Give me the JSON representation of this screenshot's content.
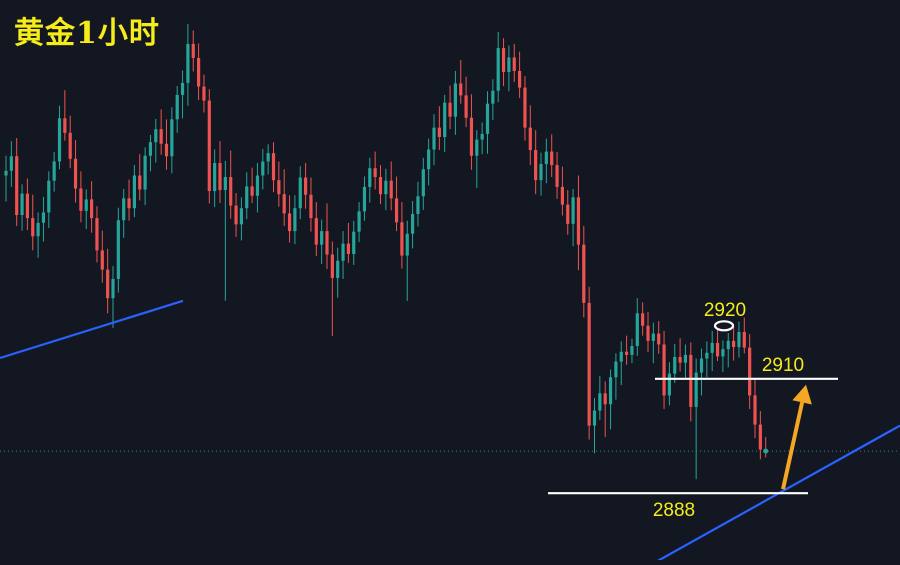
{
  "chart_data": {
    "type": "candlestick",
    "title": "黄金1小时",
    "y_range": [
      2879,
      2979
    ],
    "current_price": 2896.1,
    "annotations": {
      "peak_label": "2920",
      "resistance_label": "2910",
      "support_label": "2888"
    },
    "levels": {
      "peak": 2920,
      "resistance": 2910,
      "support": 2888
    },
    "colors": {
      "background": "#131722",
      "up": "#26a69a",
      "down": "#ef5350",
      "trendline": "#2962ff",
      "level_line": "#ffffff",
      "arrow": "#f5a623",
      "label": "#f5ec1a",
      "title": "#f5ec1a"
    },
    "candles": [
      [
        2949.1,
        2952.9,
        2944.1,
        2950.0
      ],
      [
        2950.0,
        2955.7,
        2946.9,
        2952.8
      ],
      [
        2952.8,
        2956.3,
        2939.4,
        2941.5
      ],
      [
        2941.5,
        2947.4,
        2938.5,
        2945.6
      ],
      [
        2945.6,
        2948.5,
        2938.6,
        2940.9
      ],
      [
        2940.9,
        2945.4,
        2934.7,
        2937.4
      ],
      [
        2937.4,
        2942.0,
        2933.3,
        2940.0
      ],
      [
        2940.0,
        2945.0,
        2936.4,
        2942.0
      ],
      [
        2942.0,
        2949.9,
        2939.0,
        2948.1
      ],
      [
        2948.1,
        2953.6,
        2946.0,
        2951.8
      ],
      [
        2951.8,
        2962.5,
        2950.3,
        2960.1
      ],
      [
        2960.1,
        2965.5,
        2955.8,
        2957.3
      ],
      [
        2957.3,
        2960.6,
        2950.5,
        2952.3
      ],
      [
        2952.3,
        2955.9,
        2943.9,
        2946.6
      ],
      [
        2946.6,
        2949.9,
        2940.1,
        2942.3
      ],
      [
        2942.3,
        2946.4,
        2938.8,
        2944.5
      ],
      [
        2944.5,
        2948.0,
        2938.1,
        2940.9
      ],
      [
        2940.9,
        2943.2,
        2932.4,
        2934.7
      ],
      [
        2934.7,
        2938.5,
        2928.5,
        2931.0
      ],
      [
        2931.0,
        2935.0,
        2922.6,
        2925.5
      ],
      [
        2925.5,
        2931.7,
        2919.8,
        2929.2
      ],
      [
        2929.2,
        2942.9,
        2926.6,
        2940.5
      ],
      [
        2940.5,
        2946.5,
        2937.1,
        2944.7
      ],
      [
        2944.7,
        2948.3,
        2940.4,
        2942.8
      ],
      [
        2942.8,
        2951.1,
        2941.1,
        2949.1
      ],
      [
        2949.1,
        2953.2,
        2944.3,
        2946.4
      ],
      [
        2946.4,
        2954.5,
        2943.4,
        2952.9
      ],
      [
        2952.9,
        2956.9,
        2949.9,
        2955.5
      ],
      [
        2955.5,
        2960.0,
        2951.6,
        2958.0
      ],
      [
        2958.0,
        2961.8,
        2953.1,
        2955.2
      ],
      [
        2955.2,
        2959.9,
        2950.2,
        2952.8
      ],
      [
        2952.8,
        2962.2,
        2949.5,
        2959.9
      ],
      [
        2959.9,
        2966.3,
        2957.3,
        2964.6
      ],
      [
        2964.6,
        2969.3,
        2960.1,
        2966.9
      ],
      [
        2966.9,
        2978.2,
        2962.5,
        2974.4
      ],
      [
        2974.4,
        2977.0,
        2969.1,
        2971.7
      ],
      [
        2971.7,
        2974.5,
        2963.6,
        2966.2
      ],
      [
        2966.2,
        2968.5,
        2961.2,
        2963.5
      ],
      [
        2963.5,
        2965.7,
        2943.7,
        2946.1
      ],
      [
        2946.1,
        2954.1,
        2943.0,
        2951.5
      ],
      [
        2951.5,
        2955.7,
        2943.8,
        2946.3
      ],
      [
        2946.3,
        2951.9,
        2925.0,
        2948.8
      ],
      [
        2948.8,
        2953.9,
        2940.8,
        2943.3
      ],
      [
        2943.3,
        2945.7,
        2937.3,
        2939.7
      ],
      [
        2939.7,
        2944.9,
        2936.6,
        2942.8
      ],
      [
        2942.8,
        2949.7,
        2940.7,
        2947.0
      ],
      [
        2947.0,
        2950.6,
        2943.8,
        2945.2
      ],
      [
        2945.2,
        2951.5,
        2942.0,
        2949.1
      ],
      [
        2949.1,
        2954.2,
        2946.4,
        2951.8
      ],
      [
        2951.8,
        2955.1,
        2949.3,
        2953.4
      ],
      [
        2953.4,
        2955.5,
        2945.9,
        2948.2
      ],
      [
        2948.2,
        2951.8,
        2943.1,
        2945.5
      ],
      [
        2945.5,
        2950.3,
        2939.4,
        2941.8
      ],
      [
        2941.8,
        2945.3,
        2936.2,
        2938.4
      ],
      [
        2938.4,
        2945.3,
        2935.9,
        2942.8
      ],
      [
        2942.8,
        2950.9,
        2940.7,
        2948.7
      ],
      [
        2948.7,
        2951.5,
        2942.7,
        2945.4
      ],
      [
        2945.4,
        2948.7,
        2938.3,
        2940.9
      ],
      [
        2940.9,
        2944.0,
        2933.6,
        2935.8
      ],
      [
        2935.8,
        2940.6,
        2932.1,
        2938.4
      ],
      [
        2938.4,
        2943.7,
        2931.1,
        2933.9
      ],
      [
        2933.9,
        2936.4,
        2918.2,
        2929.4
      ],
      [
        2929.4,
        2935.2,
        2925.6,
        2932.7
      ],
      [
        2932.7,
        2938.4,
        2929.2,
        2936.0
      ],
      [
        2936.0,
        2940.0,
        2932.3,
        2934.0
      ],
      [
        2934.0,
        2940.4,
        2931.9,
        2938.3
      ],
      [
        2938.3,
        2944.0,
        2936.3,
        2942.2
      ],
      [
        2942.2,
        2948.9,
        2940.4,
        2946.9
      ],
      [
        2946.9,
        2952.5,
        2943.9,
        2950.5
      ],
      [
        2950.5,
        2953.7,
        2946.4,
        2948.8
      ],
      [
        2948.8,
        2951.1,
        2943.6,
        2945.5
      ],
      [
        2945.5,
        2950.4,
        2942.4,
        2948.1
      ],
      [
        2948.1,
        2951.8,
        2942.4,
        2944.7
      ],
      [
        2944.7,
        2948.9,
        2938.4,
        2940.1
      ],
      [
        2940.1,
        2944.0,
        2931.2,
        2933.7
      ],
      [
        2933.7,
        2940.4,
        2925.0,
        2937.9
      ],
      [
        2937.9,
        2944.2,
        2935.1,
        2941.7
      ],
      [
        2941.7,
        2947.9,
        2939.3,
        2945.1
      ],
      [
        2945.1,
        2952.5,
        2942.5,
        2950.3
      ],
      [
        2950.3,
        2956.2,
        2947.2,
        2954.1
      ],
      [
        2954.1,
        2960.9,
        2951.1,
        2958.3
      ],
      [
        2958.3,
        2962.4,
        2954.0,
        2956.5
      ],
      [
        2956.5,
        2964.6,
        2953.6,
        2963.1
      ],
      [
        2963.1,
        2966.4,
        2958.0,
        2960.4
      ],
      [
        2960.4,
        2969.2,
        2956.9,
        2966.8
      ],
      [
        2966.8,
        2971.3,
        2962.9,
        2964.5
      ],
      [
        2964.5,
        2968.1,
        2958.4,
        2960.2
      ],
      [
        2960.2,
        2964.7,
        2950.2,
        2952.9
      ],
      [
        2952.9,
        2957.8,
        2946.7,
        2956.0
      ],
      [
        2956.0,
        2959.3,
        2953.2,
        2957.1
      ],
      [
        2957.1,
        2965.3,
        2953.3,
        2962.9
      ],
      [
        2962.9,
        2967.6,
        2959.8,
        2965.4
      ],
      [
        2965.4,
        2976.7,
        2963.2,
        2973.6
      ],
      [
        2973.6,
        2975.5,
        2966.3,
        2969.0
      ],
      [
        2969.0,
        2974.1,
        2965.3,
        2971.8
      ],
      [
        2971.8,
        2974.4,
        2967.1,
        2969.2
      ],
      [
        2969.2,
        2972.9,
        2964.0,
        2966.0
      ],
      [
        2966.0,
        2968.2,
        2955.8,
        2958.3
      ],
      [
        2958.3,
        2962.6,
        2951.1,
        2954.0
      ],
      [
        2954.0,
        2957.8,
        2945.5,
        2948.2
      ],
      [
        2948.2,
        2953.5,
        2945.2,
        2951.3
      ],
      [
        2951.3,
        2956.2,
        2947.6,
        2953.7
      ],
      [
        2953.7,
        2957.0,
        2948.8,
        2951.1
      ],
      [
        2951.1,
        2953.6,
        2944.6,
        2946.9
      ],
      [
        2946.9,
        2950.8,
        2941.4,
        2943.5
      ],
      [
        2943.5,
        2946.3,
        2937.7,
        2939.8
      ],
      [
        2939.8,
        2946.5,
        2935.5,
        2944.9
      ],
      [
        2944.9,
        2949.1,
        2930.9,
        2935.8
      ],
      [
        2935.8,
        2939.4,
        2921.8,
        2924.6
      ],
      [
        2924.6,
        2927.7,
        2898.3,
        2901.0
      ],
      [
        2901.0,
        2906.3,
        2895.7,
        2903.9
      ],
      [
        2903.9,
        2910.5,
        2902.1,
        2907.2
      ],
      [
        2907.2,
        2909.5,
        2898.8,
        2905.1
      ],
      [
        2905.1,
        2911.8,
        2900.3,
        2910.3
      ],
      [
        2910.3,
        2914.9,
        2906.0,
        2913.3
      ],
      [
        2913.3,
        2917.2,
        2908.8,
        2915.2
      ],
      [
        2915.2,
        2918.3,
        2912.7,
        2914.6
      ],
      [
        2914.6,
        2917.7,
        2913.0,
        2916.3
      ],
      [
        2916.3,
        2925.5,
        2914.4,
        2922.6
      ],
      [
        2922.6,
        2924.7,
        2918.3,
        2920.2
      ],
      [
        2920.2,
        2922.9,
        2915.1,
        2917.3
      ],
      [
        2917.3,
        2920.8,
        2913.0,
        2918.7
      ],
      [
        2918.7,
        2921.1,
        2914.8,
        2916.6
      ],
      [
        2916.6,
        2919.2,
        2904.2,
        2906.8
      ],
      [
        2906.8,
        2913.2,
        2904.9,
        2911.0
      ],
      [
        2911.0,
        2916.7,
        2909.2,
        2914.2
      ],
      [
        2914.2,
        2917.8,
        2911.4,
        2913.1
      ],
      [
        2913.1,
        2916.6,
        2910.1,
        2914.6
      ],
      [
        2914.6,
        2917.0,
        2901.8,
        2904.6
      ],
      [
        2904.6,
        2913.9,
        2890.7,
        2911.2
      ],
      [
        2911.2,
        2915.8,
        2906.8,
        2913.9
      ],
      [
        2913.9,
        2917.2,
        2910.3,
        2915.0
      ],
      [
        2915.0,
        2919.2,
        2911.5,
        2916.9
      ],
      [
        2916.9,
        2919.4,
        2913.4,
        2914.3
      ],
      [
        2914.3,
        2917.4,
        2911.3,
        2915.7
      ],
      [
        2915.7,
        2918.8,
        2912.2,
        2917.3
      ],
      [
        2917.3,
        2920.5,
        2913.5,
        2916.1
      ],
      [
        2916.1,
        2921.0,
        2914.1,
        2919.0
      ],
      [
        2919.0,
        2921.8,
        2914.9,
        2916.0
      ],
      [
        2916.0,
        2918.6,
        2904.2,
        2906.8
      ],
      [
        2906.8,
        2910.0,
        2898.6,
        2901.2
      ],
      [
        2901.2,
        2903.8,
        2894.5,
        2896.4
      ],
      [
        2896.4,
        2898.8,
        2894.9,
        2896.1
      ]
    ]
  }
}
